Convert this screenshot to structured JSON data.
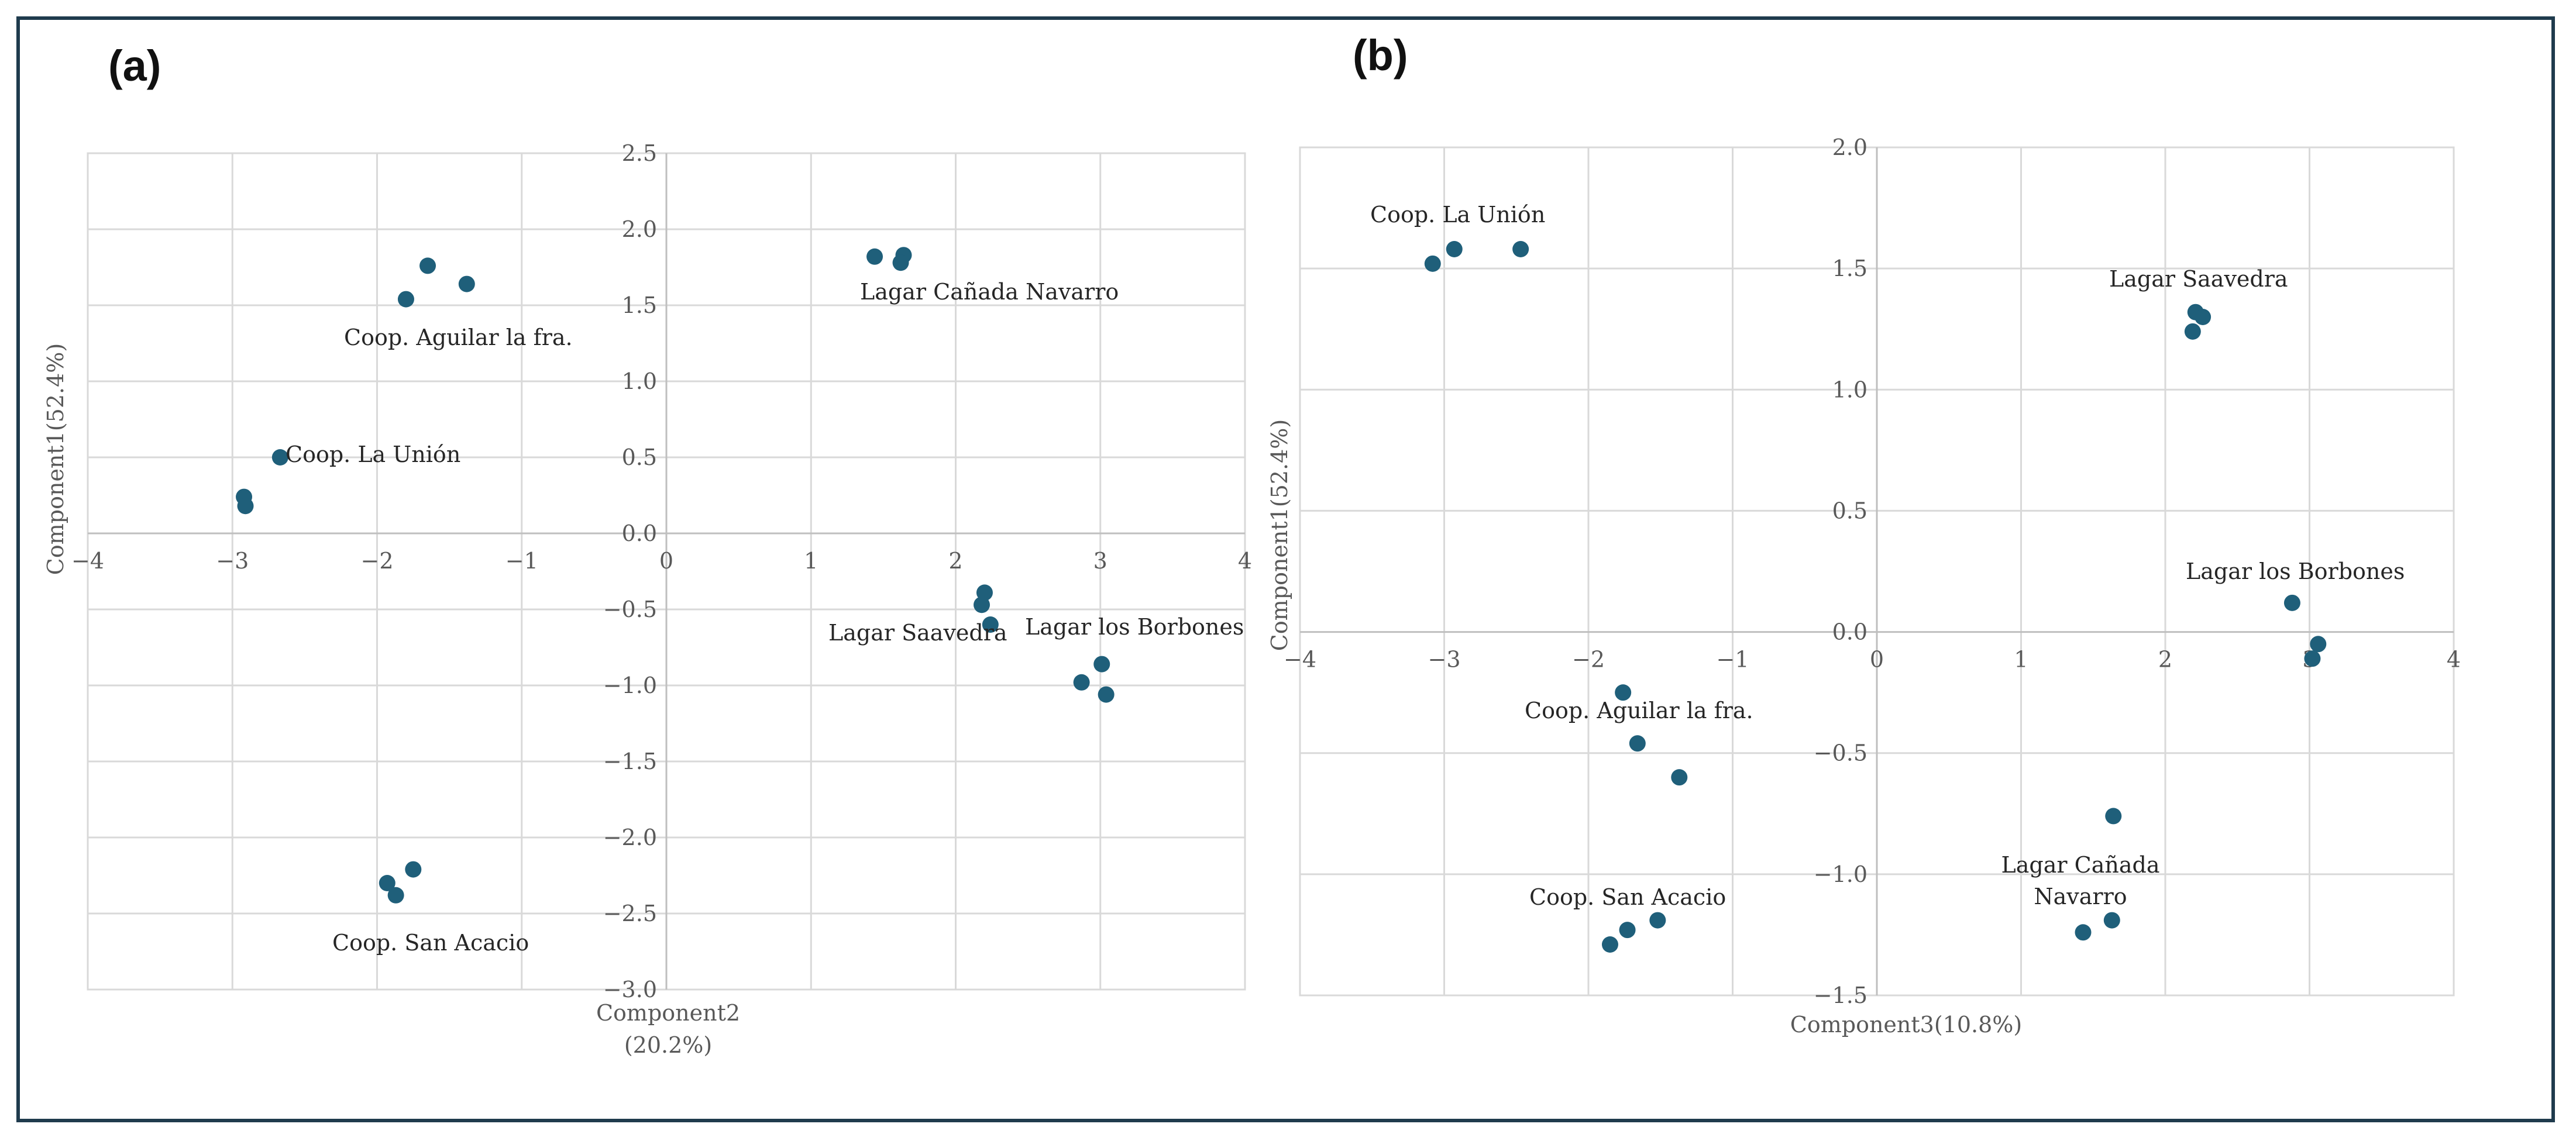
{
  "chart_data": [
    {
      "type": "scatter",
      "panel_label": "(a)",
      "xlabel": "Component2\n(20.2%)",
      "ylabel": "Component1(52.4%)",
      "xlim": [
        -4,
        4
      ],
      "ylim": [
        -3.0,
        2.5
      ],
      "x_ticks": [
        -4,
        -3,
        -2,
        -1,
        0,
        1,
        2,
        3,
        4
      ],
      "y_ticks": [
        -3.0,
        -2.5,
        -2.0,
        -1.5,
        -1.0,
        -0.5,
        0.0,
        0.5,
        1.0,
        1.5,
        2.0,
        2.5
      ],
      "x_tick_labels": [
        "−4",
        "−3",
        "−2",
        "−1",
        "0",
        "1",
        "2",
        "3",
        "4"
      ],
      "y_tick_labels": [
        "−3.0",
        "−2.5",
        "−2.0",
        "−1.5",
        "−1.0",
        "−0.5",
        "0.0",
        "0.5",
        "1.0",
        "1.5",
        "2.0",
        "2.5"
      ],
      "grid": true,
      "marker_color": "#1f5f7a",
      "groups": [
        {
          "name": "Coop. Aguilar la fra.",
          "points": [
            [
              -1.65,
              1.76
            ],
            [
              -1.38,
              1.64
            ],
            [
              -1.8,
              1.54
            ]
          ]
        },
        {
          "name": "Coop. La Unión",
          "points": [
            [
              -2.67,
              0.5
            ],
            [
              -2.92,
              0.24
            ],
            [
              -2.91,
              0.18
            ]
          ]
        },
        {
          "name": "Coop. San Acacio",
          "points": [
            [
              -1.75,
              -2.21
            ],
            [
              -1.93,
              -2.3
            ],
            [
              -1.87,
              -2.38
            ]
          ]
        },
        {
          "name": "Lagar Cañada Navarro",
          "points": [
            [
              1.44,
              1.82
            ],
            [
              1.64,
              1.83
            ],
            [
              1.62,
              1.78
            ]
          ]
        },
        {
          "name": "Lagar Saavedra",
          "points": [
            [
              2.2,
              -0.39
            ],
            [
              2.18,
              -0.47
            ],
            [
              2.24,
              -0.6
            ]
          ]
        },
        {
          "name": "Lagar los Borbones",
          "points": [
            [
              3.01,
              -0.86
            ],
            [
              2.87,
              -0.98
            ],
            [
              3.04,
              -1.06
            ]
          ]
        }
      ]
    },
    {
      "type": "scatter",
      "panel_label": "(b)",
      "xlabel": "Component3(10.8%)",
      "ylabel": "Component1(52.4%)",
      "xlim": [
        -4,
        4
      ],
      "ylim": [
        -1.5,
        2.0
      ],
      "x_ticks": [
        -4,
        -3,
        -2,
        -1,
        0,
        1,
        2,
        3,
        4
      ],
      "y_ticks": [
        -1.5,
        -1.0,
        -0.5,
        0.0,
        0.5,
        1.0,
        1.5,
        2.0
      ],
      "x_tick_labels": [
        "−4",
        "−3",
        "−2",
        "−1",
        "0",
        "1",
        "2",
        "3",
        "4"
      ],
      "y_tick_labels": [
        "−1.5",
        "−1.0",
        "−0.5",
        "0.0",
        "0.5",
        "1.0",
        "1.5",
        "2.0"
      ],
      "grid": true,
      "marker_color": "#1f5f7a",
      "groups": [
        {
          "name": "Coop. La Unión",
          "points": [
            [
              -3.08,
              1.52
            ],
            [
              -2.93,
              1.58
            ],
            [
              -2.47,
              1.58
            ]
          ]
        },
        {
          "name": "Lagar Saavedra",
          "points": [
            [
              2.21,
              1.32
            ],
            [
              2.26,
              1.3
            ],
            [
              2.19,
              1.24
            ]
          ]
        },
        {
          "name": "Lagar los Borbones",
          "points": [
            [
              2.88,
              0.12
            ],
            [
              3.06,
              -0.05
            ],
            [
              3.02,
              -0.11
            ]
          ]
        },
        {
          "name": "Coop. Aguilar la fra.",
          "points": [
            [
              -1.76,
              -0.25
            ],
            [
              -1.66,
              -0.46
            ],
            [
              -1.37,
              -0.6
            ]
          ]
        },
        {
          "name": "Lagar Cañada Navarro",
          "points": [
            [
              1.64,
              -0.76
            ],
            [
              1.63,
              -1.19
            ],
            [
              1.43,
              -1.24
            ]
          ]
        },
        {
          "name": "Coop. San Acacio",
          "points": [
            [
              -1.52,
              -1.19
            ],
            [
              -1.73,
              -1.23
            ],
            [
              -1.85,
              -1.29
            ]
          ]
        }
      ]
    }
  ]
}
